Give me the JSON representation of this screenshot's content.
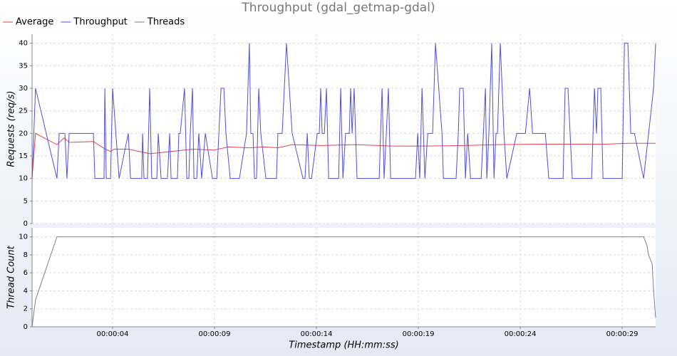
{
  "chart_data": [
    {
      "type": "line",
      "title": "Throughput (gdal_getmap-gdal)",
      "ylabel": "Requests (req/s)",
      "xlim": [
        0.05,
        30.64
      ],
      "ylim": [
        0,
        42
      ],
      "yticks": [
        0,
        5,
        10,
        15,
        20,
        25,
        30,
        35,
        40
      ],
      "grid": true,
      "series": [
        {
          "name": "Average",
          "color": "#e8414e",
          "x": [
            0.05,
            0.22,
            1.27,
            1.62,
            1.87,
            3.06,
            3.65,
            3.9,
            4.07,
            4.77,
            5.29,
            5.82,
            6.52,
            7.92,
            8.97,
            9.67,
            10.71,
            11.41,
            12.11,
            12.81,
            14.21,
            15.96,
            17.71,
            19.46,
            21.2,
            22.95,
            24.7,
            26.45,
            28.2,
            29.25,
            30.64
          ],
          "values": [
            10,
            20,
            17.5,
            19,
            18,
            18.2,
            16.5,
            16,
            16.5,
            16.5,
            16,
            15.5,
            15.8,
            16.5,
            16.3,
            17,
            16.8,
            17,
            16.8,
            17.5,
            17.3,
            17.5,
            17.2,
            17.2,
            17.3,
            17.5,
            17.6,
            17.6,
            17.6,
            17.8,
            17.8
          ]
        },
        {
          "name": "Throughput",
          "color": "#5050d8",
          "x": [
            0.05,
            0.22,
            1.27,
            1.38,
            1.66,
            1.76,
            1.87,
            3.06,
            3.13,
            3.58,
            3.62,
            3.69,
            3.9,
            4.0,
            4.32,
            4.77,
            4.88,
            5.43,
            5.47,
            5.54,
            5.71,
            5.82,
            5.92,
            6.17,
            6.24,
            6.38,
            6.69,
            6.8,
            6.87,
            7.18,
            7.25,
            7.32,
            7.53,
            7.64,
            7.74,
            7.81,
            7.92,
            7.99,
            8.13,
            8.23,
            8.37,
            8.55,
            8.9,
            9.11,
            9.32,
            9.46,
            9.56,
            9.77,
            10.22,
            10.57,
            10.71,
            10.78,
            10.89,
            10.96,
            11.06,
            11.17,
            11.27,
            11.52,
            12.04,
            12.11,
            12.32,
            12.53,
            12.81,
            13.34,
            13.44,
            13.55,
            13.65,
            13.76,
            14.04,
            14.14,
            14.21,
            14.28,
            14.39,
            14.49,
            14.6,
            15.09,
            15.19,
            15.3,
            15.43,
            15.61,
            15.68,
            15.75,
            15.85,
            15.99,
            17.08,
            17.22,
            17.32,
            17.43,
            17.53,
            17.64,
            18.76,
            18.86,
            18.97,
            19.07,
            19.18,
            19.32,
            19.46,
            19.7,
            19.84,
            20.16,
            20.23,
            20.85,
            20.96,
            21.03,
            21.2,
            21.31,
            21.42,
            21.56,
            22.08,
            22.19,
            22.29,
            22.36,
            22.46,
            22.6,
            22.71,
            22.81,
            22.88,
            23.02,
            23.2,
            23.34,
            23.83,
            24.25,
            24.46,
            24.6,
            25.23,
            25.4,
            26.1,
            26.2,
            26.34,
            26.55,
            27.5,
            27.64,
            27.74,
            27.81,
            27.95,
            28.06,
            29.0,
            29.11,
            29.28,
            29.42,
            29.6,
            30.05,
            30.54,
            30.64
          ],
          "values": [
            10,
            30,
            10,
            20,
            20,
            10,
            20,
            20,
            10,
            10,
            30,
            10,
            10,
            30,
            10,
            20,
            10,
            10,
            20,
            10,
            10,
            30,
            10,
            10,
            20,
            10,
            10,
            20,
            10,
            10,
            20,
            20,
            30,
            10,
            10,
            20,
            30,
            10,
            10,
            20,
            10,
            20,
            10,
            10,
            30,
            30,
            20,
            10,
            10,
            20,
            40,
            20,
            20,
            10,
            10,
            30,
            20,
            10,
            10,
            20,
            20,
            40,
            20,
            10,
            10,
            20,
            10,
            10,
            20,
            20,
            30,
            20,
            20,
            30,
            10,
            10,
            30,
            10,
            20,
            20,
            30,
            20,
            30,
            10,
            10,
            30,
            10,
            20,
            30,
            10,
            10,
            10,
            20,
            10,
            30,
            10,
            20,
            20,
            40,
            20,
            10,
            10,
            20,
            30,
            30,
            10,
            20,
            10,
            10,
            20,
            30,
            10,
            20,
            40,
            10,
            20,
            20,
            40,
            20,
            10,
            20,
            20,
            30,
            20,
            20,
            10,
            10,
            30,
            30,
            10,
            10,
            30,
            20,
            30,
            30,
            10,
            10,
            40,
            40,
            20,
            20,
            10,
            30,
            40
          ]
        }
      ]
    },
    {
      "type": "line",
      "ylabel": "Thread Count",
      "xlabel": "Timestamp (HH:mm:ss)",
      "xlim": [
        0.05,
        30.64
      ],
      "ylim": [
        0,
        11
      ],
      "yticks": [
        0,
        2,
        4,
        6,
        8,
        10
      ],
      "grid": true,
      "xticks": [
        {
          "value": 4,
          "label": "00:00:04"
        },
        {
          "value": 9,
          "label": "00:00:09"
        },
        {
          "value": 14,
          "label": "00:00:14"
        },
        {
          "value": 19,
          "label": "00:00:19"
        },
        {
          "value": 24,
          "label": "00:00:24"
        },
        {
          "value": 29,
          "label": "00:00:29"
        }
      ],
      "series": [
        {
          "name": "Threads",
          "color": "#808080",
          "x": [
            0.05,
            0.22,
            1.27,
            30.05,
            30.22,
            30.29,
            30.47,
            30.54,
            30.64
          ],
          "values": [
            0,
            3,
            10,
            10,
            9,
            8,
            7,
            4,
            1
          ]
        }
      ]
    }
  ]
}
